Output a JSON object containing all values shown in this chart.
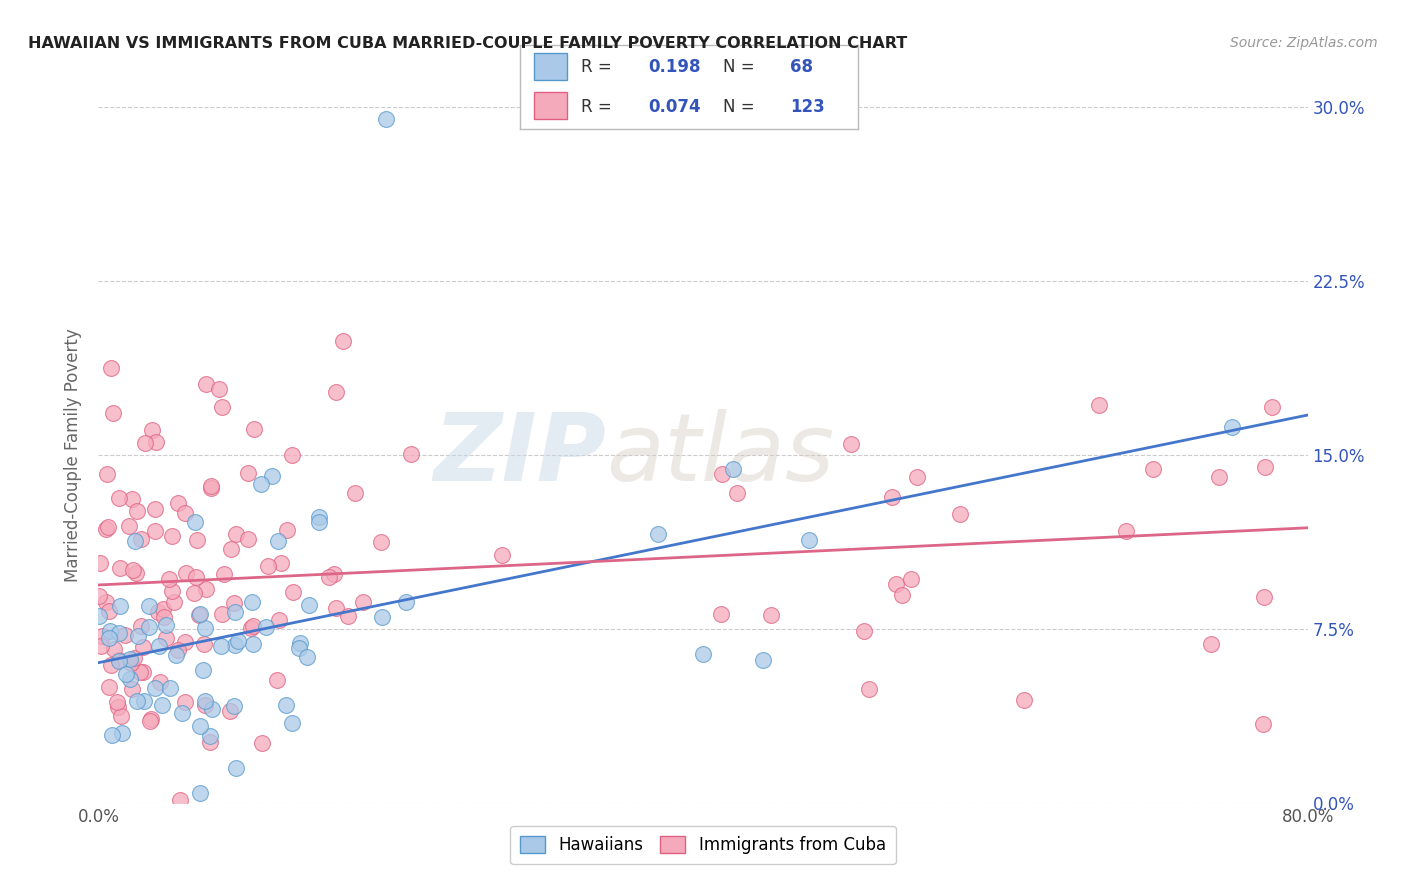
{
  "title": "HAWAIIAN VS IMMIGRANTS FROM CUBA MARRIED-COUPLE FAMILY POVERTY CORRELATION CHART",
  "source": "Source: ZipAtlas.com",
  "ylabel": "Married-Couple Family Poverty",
  "ylabel_ticks": [
    "0.0%",
    "7.5%",
    "15.0%",
    "22.5%",
    "30.0%"
  ],
  "ylabel_tick_vals": [
    0.0,
    0.075,
    0.15,
    0.225,
    0.3
  ],
  "xlim": [
    0.0,
    0.8
  ],
  "ylim": [
    0.0,
    0.3
  ],
  "watermark_zip": "ZIP",
  "watermark_atlas": "atlas",
  "legend_label1": "Hawaiians",
  "legend_label2": "Immigrants from Cuba",
  "R1": 0.198,
  "N1": 68,
  "R2": 0.074,
  "N2": 123,
  "color_hawaiian_face": "#aac9e8",
  "color_hawaiian_edge": "#5599cc",
  "color_cuba_face": "#f5aabb",
  "color_cuba_edge": "#e06080",
  "color_line_hawaiian": "#4477cc",
  "color_line_cuba": "#dd6688",
  "color_text_blue": "#3355bb",
  "background_color": "#ffffff"
}
